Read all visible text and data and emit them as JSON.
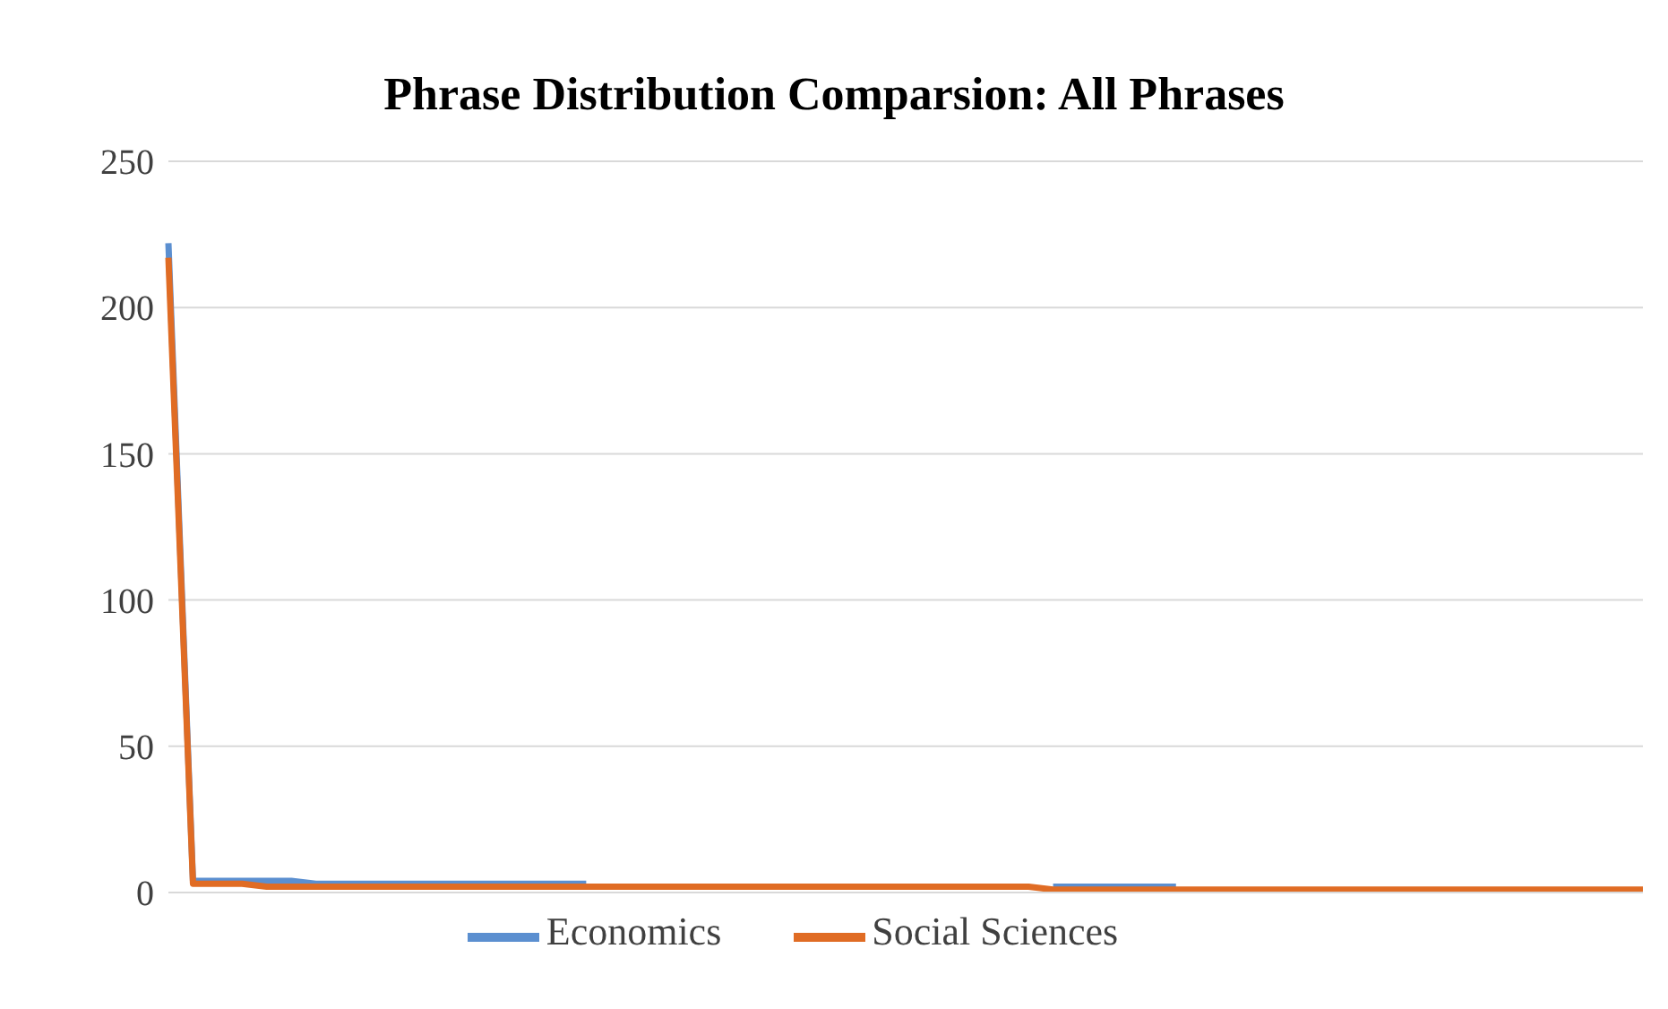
{
  "chart_data": {
    "type": "line",
    "title": "Phrase Distribution Comparsion: All Phrases",
    "categories": [
      null,
      null,
      null,
      null,
      null,
      null,
      null,
      null,
      null,
      null,
      null,
      null,
      null,
      null,
      null,
      null,
      null,
      null,
      null,
      null,
      null,
      null,
      null,
      null,
      null,
      null,
      null,
      null,
      null,
      null,
      null,
      null,
      null,
      null,
      null,
      null,
      null,
      null,
      null,
      null,
      null,
      null,
      null,
      null,
      null,
      null,
      null,
      null,
      null,
      null,
      null,
      null,
      null,
      null,
      null,
      null,
      null,
      null,
      null,
      null,
      null
    ],
    "series": [
      {
        "name": "Economics",
        "color": "#5b8fd0",
        "values": [
          222,
          4,
          4,
          4,
          4,
          4,
          3,
          3,
          3,
          3,
          3,
          3,
          3,
          3,
          3,
          3,
          3,
          3,
          null,
          null,
          null,
          null,
          null,
          null,
          null,
          null,
          null,
          null,
          null,
          null,
          null,
          null,
          null,
          null,
          null,
          null,
          2,
          2,
          2,
          2,
          2,
          2,
          null,
          null,
          null,
          null,
          null,
          null,
          null,
          null,
          null,
          null,
          null,
          null,
          null,
          null,
          null,
          null,
          null,
          null,
          null
        ]
      },
      {
        "name": "Social Sciences",
        "color": "#e06c24",
        "values": [
          217,
          3,
          3,
          3,
          2,
          2,
          2,
          2,
          2,
          2,
          2,
          2,
          2,
          2,
          2,
          2,
          2,
          2,
          2,
          2,
          2,
          2,
          2,
          2,
          2,
          2,
          2,
          2,
          2,
          2,
          2,
          2,
          2,
          2,
          2,
          2,
          1,
          1,
          1,
          1,
          1,
          1,
          1,
          1,
          1,
          1,
          1,
          1,
          1,
          1,
          1,
          1,
          1,
          1,
          1,
          1,
          1,
          1,
          1,
          1,
          1
        ]
      }
    ],
    "ylim": [
      0,
      250
    ],
    "yticks": [
      0,
      50,
      100,
      150,
      200,
      250
    ],
    "grid": "y",
    "legend": "bottom",
    "tick_labels": "y",
    "marker": "none",
    "line_style": "solid"
  }
}
